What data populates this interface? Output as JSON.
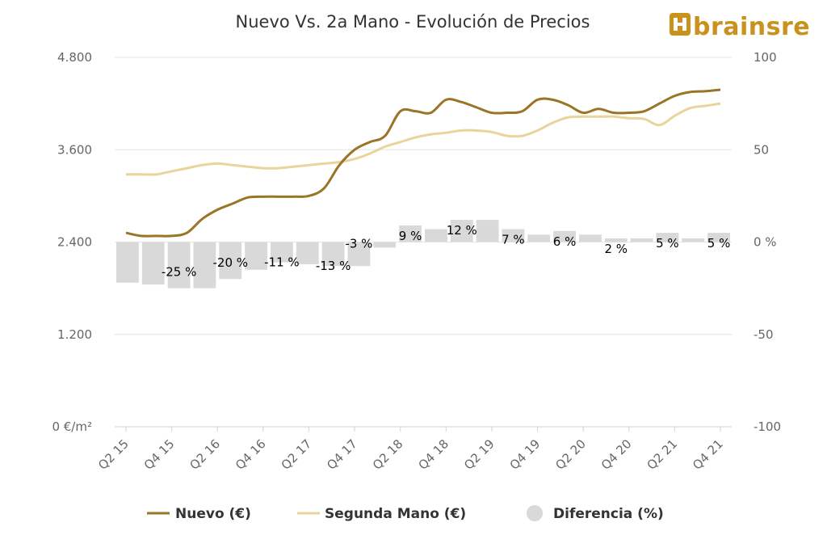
{
  "chart_data": {
    "type": "line",
    "title": "Nuevo Vs. 2a Mano - Evolución de Precios",
    "brand": "brainsre",
    "x_labels": [
      "Q2 15",
      "Q4 15",
      "Q2 16",
      "Q4 16",
      "Q2 17",
      "Q4 17",
      "Q2 18",
      "Q4 18",
      "Q2 19",
      "Q4 19",
      "Q2 20",
      "Q4 20",
      "Q2 21",
      "Q4 21"
    ],
    "y_left": {
      "ticks": [
        "0 €/m²",
        "1.200",
        "2.400",
        "3.600",
        "4.800"
      ],
      "ylim": [
        0,
        4800
      ]
    },
    "y_right": {
      "ticks": [
        "-100",
        "-50",
        "0 %",
        "50",
        "100"
      ],
      "ylim": [
        -100,
        100
      ]
    },
    "grid": true,
    "legend_position": "bottom",
    "series": [
      {
        "name": "Nuevo (€)",
        "axis": "left",
        "color": "#9a7427",
        "values": [
          2520,
          2480,
          2480,
          2480,
          2520,
          2700,
          2820,
          2900,
          2980,
          2990,
          2990,
          2990,
          3000,
          3100,
          3400,
          3600,
          3700,
          3780,
          4100,
          4100,
          4080,
          4250,
          4220,
          4150,
          4080,
          4080,
          4100,
          4250,
          4250,
          4180,
          4080,
          4130,
          4080,
          4080,
          4100,
          4200,
          4300,
          4350,
          4360,
          4380
        ]
      },
      {
        "name": "Segunda Mano (€)",
        "axis": "left",
        "color": "#e9d49b",
        "values": [
          3280,
          3280,
          3280,
          3320,
          3360,
          3400,
          3420,
          3400,
          3380,
          3360,
          3360,
          3380,
          3400,
          3420,
          3440,
          3480,
          3550,
          3640,
          3700,
          3760,
          3800,
          3820,
          3850,
          3850,
          3830,
          3780,
          3780,
          3850,
          3950,
          4020,
          4030,
          4030,
          4030,
          4010,
          4000,
          3920,
          4040,
          4140,
          4170,
          4200
        ]
      },
      {
        "name": "Diferencia (%)",
        "axis": "right",
        "type": "bar",
        "color": "#d9d9d9",
        "values": [
          -22,
          -23,
          -25,
          -25,
          -20,
          -15,
          -11,
          -12,
          -13,
          -13,
          -3,
          9,
          7,
          12,
          12,
          7,
          4,
          6,
          4,
          2,
          2,
          5,
          2,
          5
        ]
      }
    ],
    "data_labels": [
      "-25 %",
      "-20 %",
      "-11 %",
      "-13 %",
      "-3 %",
      "9 %",
      "12 %",
      "7 %",
      "6 %",
      "2 %",
      "5 %",
      "5 %"
    ]
  }
}
